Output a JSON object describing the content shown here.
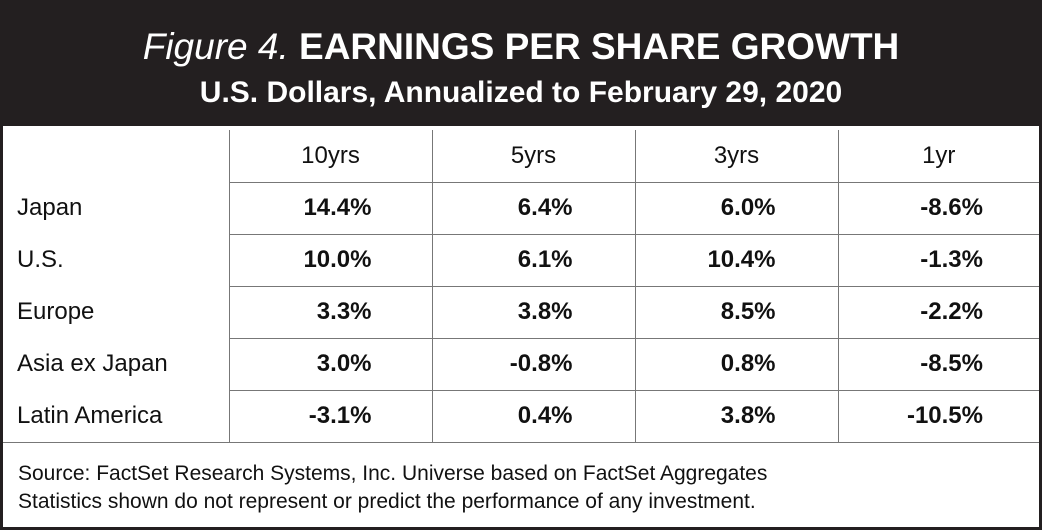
{
  "figure": {
    "label": "Figure 4.",
    "title": "EARNINGS PER SHARE GROWTH",
    "subtitle": "U.S. Dollars, Annualized to February 29, 2020"
  },
  "chart_data": {
    "type": "table",
    "title": "EARNINGS PER SHARE GROWTH",
    "subtitle": "U.S. Dollars, Annualized to February 29, 2020",
    "columns": [
      "10yrs",
      "5yrs",
      "3yrs",
      "1yr"
    ],
    "rows": [
      {
        "label": "Japan",
        "values": [
          "14.4%",
          "6.4%",
          "6.0%",
          "-8.6%"
        ]
      },
      {
        "label": "U.S.",
        "values": [
          "10.0%",
          "6.1%",
          "10.4%",
          "-1.3%"
        ]
      },
      {
        "label": "Europe",
        "values": [
          "3.3%",
          "3.8%",
          "8.5%",
          "-2.2%"
        ]
      },
      {
        "label": "Asia ex Japan",
        "values": [
          "3.0%",
          "-0.8%",
          "0.8%",
          "-8.5%"
        ]
      },
      {
        "label": "Latin America",
        "values": [
          "-3.1%",
          "0.4%",
          "3.8%",
          "-10.5%"
        ]
      }
    ]
  },
  "footer": {
    "source": "Source: FactSet Research Systems, Inc. Universe based on FactSet Aggregates",
    "disclaimer": "Statistics shown do not represent or predict the performance of any investment."
  }
}
